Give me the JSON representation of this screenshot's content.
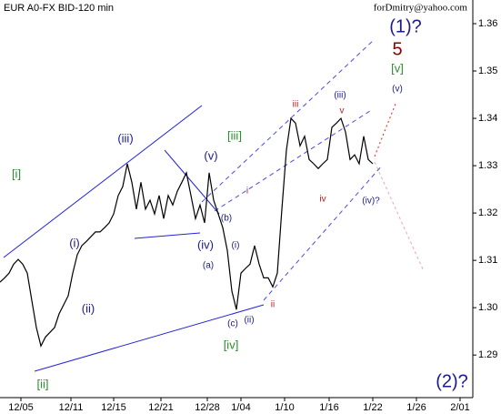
{
  "chart_data": {
    "type": "line",
    "title": "EUR A0-FX BID-120 min",
    "subtitle": "forDmitry@yahoo.com",
    "series": [
      {
        "name": "EUR A0-FX BID",
        "color": "#000000",
        "values": [
          1.3054,
          1.3063,
          1.3073,
          1.3092,
          1.3102,
          1.3092,
          1.3073,
          1.3015,
          1.2958,
          1.2919,
          1.2938,
          1.2948,
          1.2958,
          1.2987,
          1.3006,
          1.3025,
          1.3073,
          1.3112,
          1.3131,
          1.314,
          1.315,
          1.316,
          1.316,
          1.3169,
          1.3179,
          1.3198,
          1.3237,
          1.3256,
          1.3304,
          1.3265,
          1.3208,
          1.3265,
          1.3208,
          1.3227,
          1.3198,
          1.3237,
          1.3188,
          1.3237,
          1.3217,
          1.3246,
          1.3265,
          1.3285,
          1.3237,
          1.3188,
          1.3217,
          1.3179,
          1.3285,
          1.3227,
          1.3198,
          1.3169,
          1.3121,
          1.3035,
          1.2996,
          1.3073,
          1.3083,
          1.3092,
          1.3131,
          1.3092,
          1.3063,
          1.3063,
          1.3044,
          1.3073,
          1.3208,
          1.3333,
          1.34,
          1.339,
          1.3342,
          1.3362,
          1.3313,
          1.3304,
          1.3294,
          1.3304,
          1.3313,
          1.3381,
          1.339,
          1.34,
          1.3371,
          1.3313,
          1.3323,
          1.3304,
          1.3362,
          1.3313,
          1.3304
        ]
      }
    ],
    "xlim": [
      0,
      104
    ],
    "xticks": [
      {
        "value": 4.6,
        "label": "12/05"
      },
      {
        "value": 15.6,
        "label": "12/11"
      },
      {
        "value": 25,
        "label": "12/15"
      },
      {
        "value": 35.4,
        "label": "12/21"
      },
      {
        "value": 45.6,
        "label": "12/28"
      },
      {
        "value": 53,
        "label": "1/04"
      },
      {
        "value": 62.6,
        "label": "1/10"
      },
      {
        "value": 72.4,
        "label": "1/16"
      },
      {
        "value": 82,
        "label": "1/22"
      },
      {
        "value": 91.6,
        "label": "1/26"
      },
      {
        "value": 101.2,
        "label": "2/01"
      }
    ],
    "ylim": [
      1.281,
      1.365
    ],
    "yticks": [
      1.29,
      {
        "value": 1.3,
        "label": "1.30"
      },
      1.31,
      1.32,
      1.33,
      1.34,
      1.35,
      1.36
    ],
    "grid": false,
    "annotations": [
      {
        "text": "[i]",
        "color": "#2e8b2e"
      },
      {
        "text": "(i)",
        "color": "#1a1a8c"
      },
      {
        "text": "(ii)",
        "color": "#1a1a8c"
      },
      {
        "text": "[ii]",
        "color": "#2e8b2e"
      },
      {
        "text": "(iii)",
        "color": "#1a1a8c"
      },
      {
        "text": "[iii]",
        "color": "#2e8b2e"
      },
      {
        "text": "(v)",
        "color": "#1a1a8c"
      },
      {
        "text": "(iv)",
        "color": "#1a1a8c"
      },
      {
        "text": "(b)",
        "color": "#1a1a8c"
      },
      {
        "text": "(a)",
        "color": "#1a1a8c"
      },
      {
        "text": "(i)",
        "color": "#1a1a8c"
      },
      {
        "text": "(c)",
        "color": "#1a1a8c"
      },
      {
        "text": "(ii)",
        "color": "#1a1a8c"
      },
      {
        "text": "[iv]",
        "color": "#2e8b2e"
      },
      {
        "text": "i",
        "color": "#b22222"
      },
      {
        "text": "ii",
        "color": "#b22222"
      },
      {
        "text": "iii",
        "color": "#b22222"
      },
      {
        "text": "(iii)",
        "color": "#1a1a8c"
      },
      {
        "text": "v",
        "color": "#b22222"
      },
      {
        "text": "iv",
        "color": "#b22222"
      },
      {
        "text": "(iv)?",
        "color": "#1a1a8c"
      },
      {
        "text": "[v]",
        "color": "#2e8b2e"
      },
      {
        "text": "(v)",
        "color": "#1a1a8c"
      },
      {
        "text": "5",
        "color": "#8b0000"
      },
      {
        "text": "(1)?",
        "color": "#1a1a8c"
      },
      {
        "text": "(2)?",
        "color": "#1a1a8c"
      }
    ]
  }
}
